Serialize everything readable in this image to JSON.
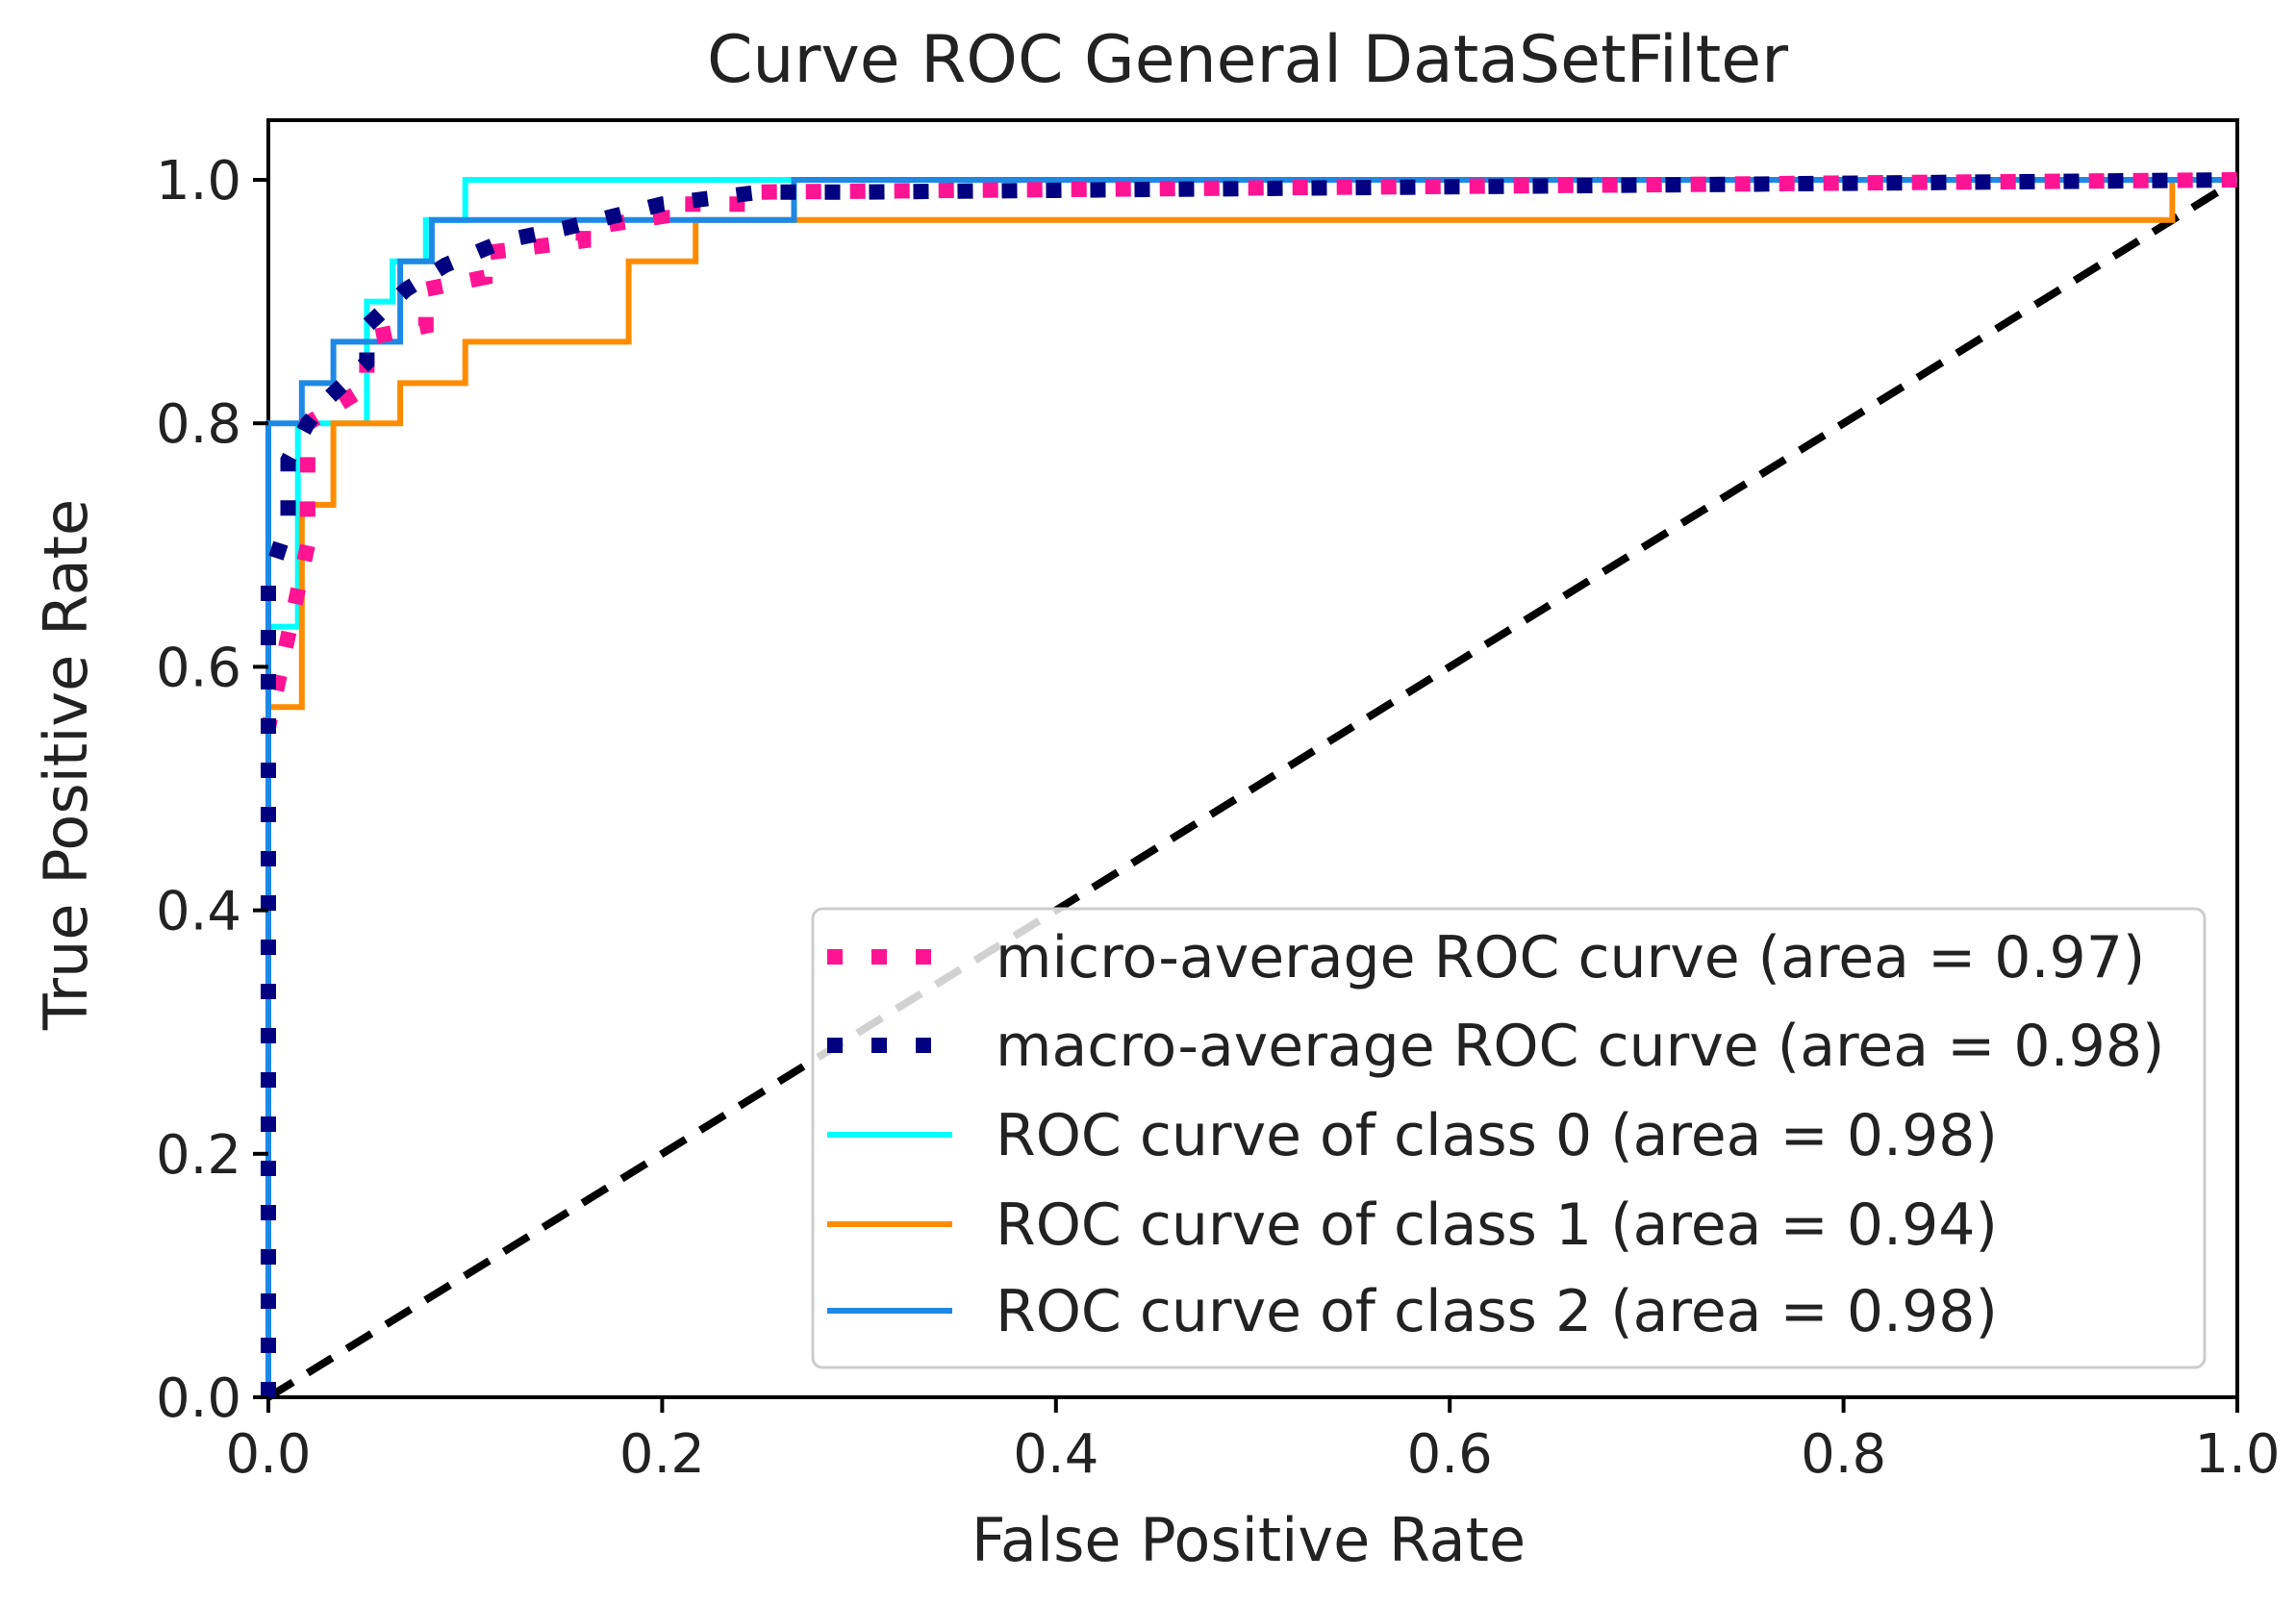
{
  "chart_data": {
    "type": "line",
    "title": "Curve ROC General DataSetFilter",
    "xlabel": "False Positive Rate",
    "ylabel": "True Positive Rate",
    "xlim": [
      0.0,
      1.0
    ],
    "ylim": [
      0.0,
      1.05
    ],
    "xticks": [
      {
        "value": 0.0,
        "label": "0.0"
      },
      {
        "value": 0.2,
        "label": "0.2"
      },
      {
        "value": 0.4,
        "label": "0.4"
      },
      {
        "value": 0.6,
        "label": "0.6"
      },
      {
        "value": 0.8,
        "label": "0.8"
      },
      {
        "value": 1.0,
        "label": "1.0"
      }
    ],
    "yticks": [
      {
        "value": 0.0,
        "label": "0.0"
      },
      {
        "value": 0.2,
        "label": "0.2"
      },
      {
        "value": 0.4,
        "label": "0.4"
      },
      {
        "value": 0.6,
        "label": "0.6"
      },
      {
        "value": 0.8,
        "label": "0.8"
      },
      {
        "value": 1.0,
        "label": "1.0"
      }
    ],
    "grid": false,
    "legend_position": "lower-right",
    "series": [
      {
        "name": "micro-average ROC curve (area = 0.97)",
        "color": "#ff1493",
        "style": "dotted-thick",
        "x": [
          0.0,
          0.0,
          0.02,
          0.02,
          0.05,
          0.05,
          0.08,
          0.08,
          0.11,
          0.11,
          0.16,
          0.16,
          0.2,
          0.2,
          0.25,
          0.25,
          1.0
        ],
        "y": [
          0.0,
          0.55,
          0.7,
          0.8,
          0.83,
          0.87,
          0.88,
          0.91,
          0.92,
          0.94,
          0.95,
          0.96,
          0.97,
          0.98,
          0.98,
          0.99,
          1.0
        ]
      },
      {
        "name": "macro-average ROC curve (area = 0.98)",
        "color": "#000080",
        "style": "dotted-thick",
        "x": [
          0.0,
          0.0,
          0.01,
          0.01,
          0.02,
          0.03,
          0.05,
          0.05,
          0.07,
          0.09,
          0.12,
          0.15,
          0.2,
          0.25,
          0.3,
          1.0
        ],
        "y": [
          0.0,
          0.67,
          0.72,
          0.77,
          0.8,
          0.82,
          0.85,
          0.88,
          0.91,
          0.93,
          0.95,
          0.96,
          0.98,
          0.99,
          0.99,
          1.0
        ]
      },
      {
        "name": "ROC curve of class 0 (area = 0.98)",
        "color": "#00ffff",
        "style": "solid",
        "x": [
          0.0,
          0.0,
          0.01,
          0.015,
          0.015,
          0.033,
          0.033,
          0.05,
          0.05,
          0.063,
          0.063,
          0.08,
          0.08,
          0.1,
          0.1,
          1.0
        ],
        "y": [
          0.0,
          0.633,
          0.633,
          0.633,
          0.8,
          0.8,
          0.8,
          0.8,
          0.9,
          0.9,
          0.933,
          0.933,
          0.967,
          0.967,
          1.0,
          1.0
        ]
      },
      {
        "name": "ROC curve of class 1 (area = 0.94)",
        "color": "#ff8c00",
        "style": "solid",
        "x": [
          0.0,
          0.0,
          0.017,
          0.017,
          0.033,
          0.033,
          0.067,
          0.067,
          0.1,
          0.1,
          0.183,
          0.183,
          0.217,
          0.217,
          0.967,
          0.967,
          1.0
        ],
        "y": [
          0.0,
          0.567,
          0.567,
          0.733,
          0.733,
          0.8,
          0.8,
          0.833,
          0.833,
          0.867,
          0.867,
          0.933,
          0.933,
          0.967,
          0.967,
          1.0,
          1.0
        ]
      },
      {
        "name": "ROC curve of class 2 (area = 0.98)",
        "color": "#1e88e5",
        "style": "solid",
        "x": [
          0.0,
          0.0,
          0.017,
          0.017,
          0.033,
          0.033,
          0.05,
          0.05,
          0.067,
          0.067,
          0.083,
          0.083,
          0.267,
          0.267,
          1.0
        ],
        "y": [
          0.0,
          0.8,
          0.8,
          0.833,
          0.833,
          0.867,
          0.867,
          0.867,
          0.867,
          0.933,
          0.933,
          0.967,
          0.967,
          1.0,
          1.0
        ]
      }
    ],
    "reference_line": {
      "name": "chance",
      "color": "#000000",
      "style": "dashed",
      "x": [
        0.0,
        1.0
      ],
      "y": [
        0.0,
        1.0
      ]
    }
  }
}
